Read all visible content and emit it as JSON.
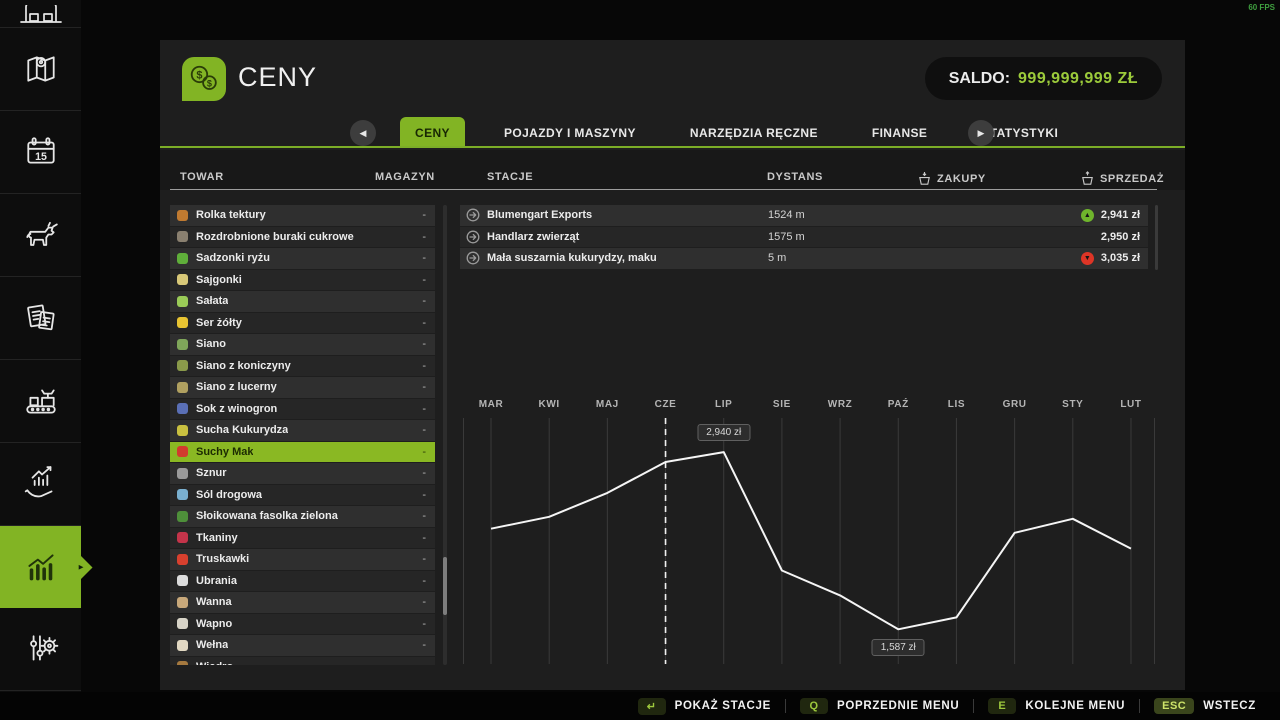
{
  "fps_counter": "60 FPS",
  "colors": {
    "accent": "#82b424",
    "saldo_value": "#9ccb3b",
    "trend_up": "#6fb52c",
    "trend_down": "#de3526",
    "chart_line": "#f5f5f5"
  },
  "sidebar": {
    "items": [
      {
        "name": "vehicles",
        "icon": "vehicle-icon",
        "active": false,
        "partial": true
      },
      {
        "name": "map",
        "icon": "map-icon",
        "active": false
      },
      {
        "name": "calendar",
        "icon": "calendar-icon",
        "active": false,
        "badge": "15"
      },
      {
        "name": "animals",
        "icon": "cow-icon",
        "active": false
      },
      {
        "name": "contracts",
        "icon": "contracts-icon",
        "active": false
      },
      {
        "name": "production",
        "icon": "production-icon",
        "active": false
      },
      {
        "name": "finances",
        "icon": "hand-chart-icon",
        "active": false
      },
      {
        "name": "prices",
        "icon": "statistics-icon",
        "active": true
      },
      {
        "name": "settings",
        "icon": "sliders-gear-icon",
        "active": false
      }
    ]
  },
  "header": {
    "title": "CENY",
    "icon": "money-icon",
    "saldo_label": "SALDO:",
    "saldo_value": "999,999,999 ZŁ"
  },
  "tabs": {
    "items": [
      {
        "label": "CENY",
        "active": true
      },
      {
        "label": "POJAZDY I MASZYNY",
        "active": false
      },
      {
        "label": "NARZĘDZIA RĘCZNE",
        "active": false
      },
      {
        "label": "FINANSE",
        "active": false
      },
      {
        "label": "STATYSTYKI",
        "active": false
      }
    ]
  },
  "table": {
    "columns": {
      "towar": "TOWAR",
      "magazyn": "MAGAZYN",
      "stacje": "STACJE",
      "dystans": "DYSTANS",
      "zakupy": "ZAKUPY",
      "sprzedaz": "SPRZEDAŻ"
    }
  },
  "products": {
    "selected": "Suchy Mak",
    "items": [
      {
        "name": "Rolka tektury",
        "storage": "-",
        "color": "#c07a30"
      },
      {
        "name": "Rozdrobnione buraki cukrowe",
        "storage": "-",
        "color": "#8a8070"
      },
      {
        "name": "Sadzonki ryżu",
        "storage": "-",
        "color": "#5fae3a"
      },
      {
        "name": "Sajgonki",
        "storage": "-",
        "color": "#d8c878"
      },
      {
        "name": "Sałata",
        "storage": "-",
        "color": "#9acb57"
      },
      {
        "name": "Ser żółty",
        "storage": "-",
        "color": "#e8c432"
      },
      {
        "name": "Siano",
        "storage": "-",
        "color": "#7fa65a"
      },
      {
        "name": "Siano z koniczyny",
        "storage": "-",
        "color": "#8a9a4a"
      },
      {
        "name": "Siano z lucerny",
        "storage": "-",
        "color": "#b0a060"
      },
      {
        "name": "Sok z winogron",
        "storage": "-",
        "color": "#5a6fb5"
      },
      {
        "name": "Sucha Kukurydza",
        "storage": "-",
        "color": "#c9c040"
      },
      {
        "name": "Suchy Mak",
        "storage": "-",
        "color": "#d23b2e"
      },
      {
        "name": "Sznur",
        "storage": "-",
        "color": "#9a9a9a"
      },
      {
        "name": "Sól drogowa",
        "storage": "-",
        "color": "#7ab0d0"
      },
      {
        "name": "Słoikowana fasolka zielona",
        "storage": "-",
        "color": "#4e8f3a"
      },
      {
        "name": "Tkaniny",
        "storage": "-",
        "color": "#c4344a"
      },
      {
        "name": "Truskawki",
        "storage": "-",
        "color": "#d8402e"
      },
      {
        "name": "Ubrania",
        "storage": "-",
        "color": "#dcdcdc"
      },
      {
        "name": "Wanna",
        "storage": "-",
        "color": "#c8a87a"
      },
      {
        "name": "Wapno",
        "storage": "-",
        "color": "#d8d4c8"
      },
      {
        "name": "Wełna",
        "storage": "-",
        "color": "#e2d8c2"
      },
      {
        "name": "Wiadro",
        "storage": "-",
        "color": "#a5793f"
      }
    ]
  },
  "stations": {
    "items": [
      {
        "name": "Blumengart Exports",
        "distance": "1524 m",
        "price": "2,941 zł",
        "trend": "up"
      },
      {
        "name": "Handlarz zwierząt",
        "distance": "1575 m",
        "price": "2,950 zł",
        "trend": null
      },
      {
        "name": "Mała suszarnia kukurydzy, maku",
        "distance": "5 m",
        "price": "3,035 zł",
        "trend": "down"
      }
    ]
  },
  "chart_data": {
    "type": "line",
    "categories": [
      "MAR",
      "KWI",
      "MAJ",
      "CZE",
      "LIP",
      "SIE",
      "WRZ",
      "PAŹ",
      "LIS",
      "GRU",
      "STY",
      "LUT"
    ],
    "values": [
      2355,
      2446,
      2628,
      2864,
      2940,
      2036,
      1846,
      1587,
      1678,
      2324,
      2431,
      2203
    ],
    "unit": "zł",
    "ylim": [
      1330,
      3200
    ],
    "grid": "vertical-only",
    "current_month_index": 3,
    "max_annotation": {
      "index": 4,
      "value": 2940,
      "label": "2,940 zł"
    },
    "min_annotation": {
      "index": 7,
      "value": 1587,
      "label": "1,587 zł"
    }
  },
  "bottom_bar": {
    "items": [
      {
        "key": "↵",
        "label": "POKAŻ STACJE",
        "highlight": false
      },
      {
        "key": "Q",
        "label": "POPRZEDNIE MENU",
        "highlight": false
      },
      {
        "key": "E",
        "label": "KOLEJNE MENU",
        "highlight": false
      },
      {
        "key": "ESC",
        "label": "WSTECZ",
        "highlight": true
      }
    ]
  }
}
